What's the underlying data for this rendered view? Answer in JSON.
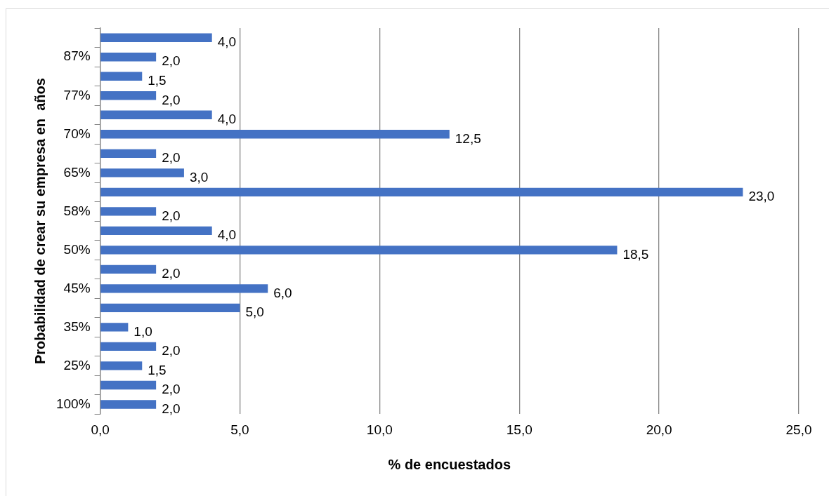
{
  "chart_data": {
    "type": "bar",
    "orientation": "horizontal",
    "xlabel": "% de encuestados",
    "ylabel": "Probabilidad de crear su empresa en  años",
    "categories": [
      null,
      "87%",
      null,
      "77%",
      null,
      "70%",
      null,
      "65%",
      null,
      "58%",
      null,
      "50%",
      null,
      "45%",
      null,
      "35%",
      null,
      "25%",
      null,
      "100%"
    ],
    "values": [
      4.0,
      2.0,
      1.5,
      2.0,
      4.0,
      12.5,
      2.0,
      3.0,
      23.0,
      2.0,
      4.0,
      18.5,
      2.0,
      6.0,
      5.0,
      1.0,
      2.0,
      1.5,
      2.0,
      2.0
    ],
    "value_labels": [
      "4,0",
      "2,0",
      "1,5",
      "2,0",
      "4,0",
      "12,5",
      "2,0",
      "3,0",
      "23,0",
      "2,0",
      "4,0",
      "18,5",
      "2,0",
      "6,0",
      "5,0",
      "1,0",
      "2,0",
      "1,5",
      "2,0",
      "2,0"
    ],
    "color": "#4472c4",
    "xlim": [
      0,
      25
    ],
    "xticks": [
      {
        "value": 0,
        "label": "0,0"
      },
      {
        "value": 5,
        "label": "5,0"
      },
      {
        "value": 10,
        "label": "10,0"
      },
      {
        "value": 15,
        "label": "15,0"
      },
      {
        "value": 20,
        "label": "20,0"
      },
      {
        "value": 25,
        "label": "25,0"
      }
    ],
    "grid": "x",
    "legend": false
  }
}
